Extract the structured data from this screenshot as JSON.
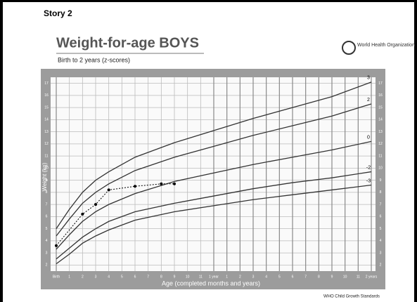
{
  "header": {
    "story": "Story 2",
    "org": "World Health Organization",
    "footer": "WHO Child Growth Standards"
  },
  "chart_data": {
    "type": "line",
    "title": "Weight-for-age BOYS",
    "subtitle": "Birth to 2 years (z-scores)",
    "y_label": "Weight (kg)",
    "x_label": "Age (completed months and years)",
    "xlim": [
      0,
      24
    ],
    "ylim": [
      1.5,
      17.5
    ],
    "grid": true,
    "xticks": [
      {
        "value": 0,
        "label": "Birth"
      },
      1,
      2,
      3,
      4,
      5,
      6,
      7,
      8,
      9,
      10,
      11,
      {
        "value": 12,
        "label": "1 year"
      },
      {
        "value": 13,
        "label": "1"
      },
      {
        "value": 14,
        "label": "2"
      },
      {
        "value": 15,
        "label": "3"
      },
      {
        "value": 16,
        "label": "4"
      },
      {
        "value": 17,
        "label": "5"
      },
      {
        "value": 18,
        "label": "6"
      },
      {
        "value": 19,
        "label": "7"
      },
      {
        "value": 20,
        "label": "8"
      },
      {
        "value": 21,
        "label": "9"
      },
      {
        "value": 22,
        "label": "10"
      },
      {
        "value": 23,
        "label": "11"
      },
      {
        "value": 24,
        "label": "2 years"
      }
    ],
    "yticks": [
      2,
      3,
      4,
      5,
      6,
      7,
      8,
      9,
      10,
      11,
      12,
      13,
      14,
      15,
      16,
      17
    ],
    "x": [
      0,
      1,
      2,
      3,
      4,
      6,
      9,
      12,
      15,
      18,
      21,
      24
    ],
    "series": [
      {
        "name": "3",
        "color": "#333333",
        "values": [
          5.0,
          6.6,
          8.0,
          9.0,
          9.7,
          10.9,
          12.1,
          13.1,
          14.1,
          15.0,
          15.9,
          17.1
        ]
      },
      {
        "name": "2",
        "color": "#333333",
        "values": [
          4.4,
          5.8,
          7.1,
          8.0,
          8.7,
          9.8,
          10.9,
          11.8,
          12.7,
          13.5,
          14.3,
          15.3
        ]
      },
      {
        "name": "0",
        "color": "#333333",
        "values": [
          3.3,
          4.5,
          5.6,
          6.4,
          7.0,
          7.9,
          8.9,
          9.6,
          10.3,
          10.9,
          11.5,
          12.2
        ]
      },
      {
        "name": "-2",
        "color": "#333333",
        "values": [
          2.5,
          3.4,
          4.3,
          5.0,
          5.6,
          6.4,
          7.1,
          7.7,
          8.3,
          8.8,
          9.2,
          9.7
        ]
      },
      {
        "name": "-3",
        "color": "#333333",
        "values": [
          2.1,
          2.9,
          3.8,
          4.4,
          4.9,
          5.7,
          6.4,
          6.9,
          7.4,
          7.8,
          8.2,
          8.6
        ]
      }
    ],
    "points": {
      "color": "#000000",
      "x": [
        0,
        2,
        3,
        4,
        6,
        8,
        9
      ],
      "values": [
        3.6,
        6.2,
        7.0,
        8.2,
        8.5,
        8.7,
        8.7
      ]
    }
  }
}
